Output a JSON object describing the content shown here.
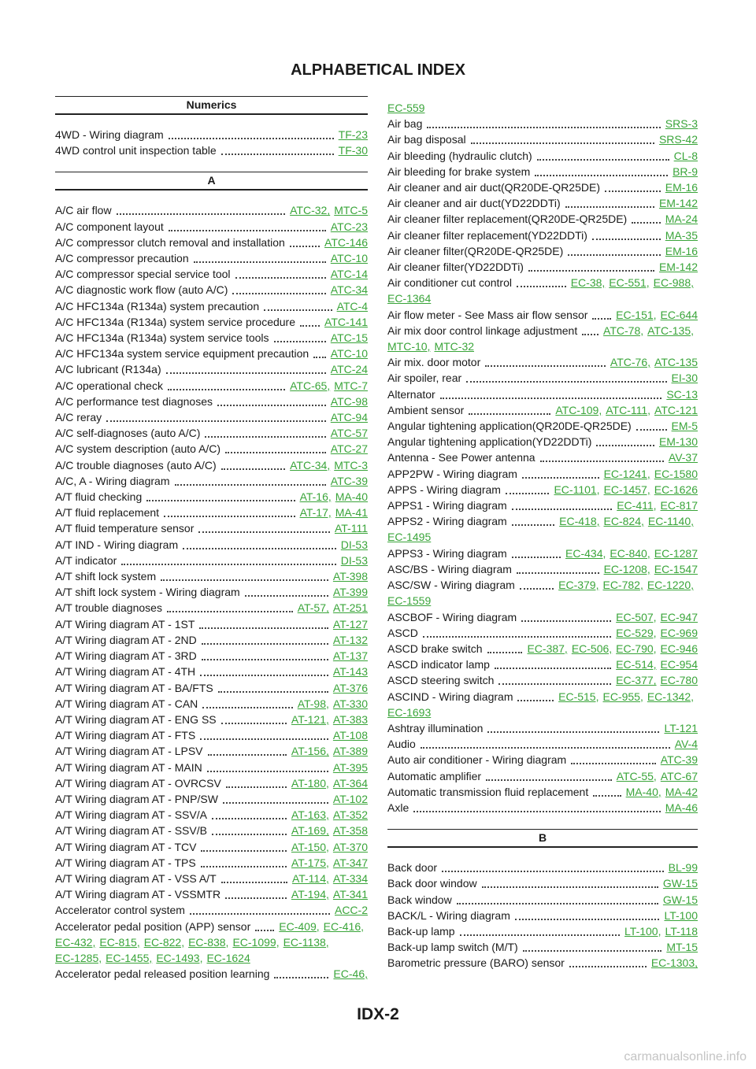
{
  "header": {
    "title": "ALPHABETICAL INDEX"
  },
  "columns": [
    {
      "sections": [
        {
          "heading": "Numerics",
          "entries": [
            {
              "text": "4WD - Wiring diagram",
              "links": [
                "TF-23"
              ]
            },
            {
              "text": "4WD control unit inspection table",
              "links": [
                "TF-30"
              ]
            }
          ]
        },
        {
          "heading": "A",
          "entries": [
            {
              "text": "A/C air flow",
              "links": [
                "ATC-32,",
                "MTC-5"
              ]
            },
            {
              "text": "A/C component layout",
              "links": [
                "ATC-23"
              ]
            },
            {
              "text": "A/C compressor clutch removal and installation",
              "links": [
                "ATC-146"
              ]
            },
            {
              "text": "A/C compressor precaution",
              "links": [
                "ATC-10"
              ]
            },
            {
              "text": "A/C compressor special service tool",
              "links": [
                "ATC-14"
              ]
            },
            {
              "text": "A/C diagnostic work flow (auto A/C)",
              "links": [
                "ATC-34"
              ]
            },
            {
              "text": "A/C HFC134a (R134a) system precaution",
              "links": [
                "ATC-4"
              ]
            },
            {
              "text": "A/C HFC134a (R134a) system service procedure",
              "links": [
                "ATC-141"
              ]
            },
            {
              "text": "A/C HFC134a (R134a) system service tools",
              "links": [
                "ATC-15"
              ]
            },
            {
              "text": "A/C HFC134a system service equipment precaution",
              "links": [
                "ATC-10"
              ]
            },
            {
              "text": "A/C lubricant (R134a)",
              "links": [
                "ATC-24"
              ]
            },
            {
              "text": "A/C operational check",
              "links": [
                "ATC-65,",
                "MTC-7"
              ]
            },
            {
              "text": "A/C performance test diagnoses",
              "links": [
                "ATC-98"
              ]
            },
            {
              "text": "A/C reray",
              "links": [
                "ATC-94"
              ]
            },
            {
              "text": "A/C self-diagnoses (auto A/C)",
              "links": [
                "ATC-57"
              ]
            },
            {
              "text": "A/C system description (auto A/C)",
              "links": [
                "ATC-27"
              ]
            },
            {
              "text": "A/C trouble diagnoses (auto A/C)",
              "links": [
                "ATC-34,",
                "MTC-3"
              ]
            },
            {
              "text": "A/C, A - Wiring diagram",
              "links": [
                "ATC-39"
              ]
            },
            {
              "text": "A/T fluid checking",
              "links": [
                "AT-16,",
                "MA-40"
              ]
            },
            {
              "text": "A/T fluid replacement",
              "links": [
                "AT-17,",
                "MA-41"
              ]
            },
            {
              "text": "A/T fluid temperature sensor",
              "links": [
                "AT-111"
              ]
            },
            {
              "text": "A/T IND - Wiring diagram",
              "links": [
                "DI-53"
              ]
            },
            {
              "text": "A/T indicator",
              "links": [
                "DI-53"
              ]
            },
            {
              "text": "A/T shift lock system",
              "links": [
                "AT-398"
              ]
            },
            {
              "text": "A/T shift lock system - Wiring diagram",
              "links": [
                "AT-399"
              ]
            },
            {
              "text": "A/T trouble diagnoses",
              "links": [
                "AT-57,",
                "AT-251"
              ]
            },
            {
              "text": "A/T Wiring diagram AT - 1ST",
              "links": [
                "AT-127"
              ]
            },
            {
              "text": "A/T Wiring diagram AT - 2ND",
              "links": [
                "AT-132"
              ]
            },
            {
              "text": "A/T Wiring diagram AT - 3RD",
              "links": [
                "AT-137"
              ]
            },
            {
              "text": "A/T Wiring diagram AT - 4TH",
              "links": [
                "AT-143"
              ]
            },
            {
              "text": "A/T Wiring diagram AT - BA/FTS",
              "links": [
                "AT-376"
              ]
            },
            {
              "text": "A/T Wiring diagram AT - CAN",
              "links": [
                "AT-98,",
                "AT-330"
              ]
            },
            {
              "text": "A/T Wiring diagram AT - ENG SS",
              "links": [
                "AT-121,",
                "AT-383"
              ]
            },
            {
              "text": "A/T Wiring diagram AT - FTS",
              "links": [
                "AT-108"
              ]
            },
            {
              "text": "A/T Wiring diagram AT - LPSV",
              "links": [
                "AT-156,",
                "AT-389"
              ]
            },
            {
              "text": "A/T Wiring diagram AT - MAIN",
              "links": [
                "AT-395"
              ]
            },
            {
              "text": "A/T Wiring diagram AT - OVRCSV",
              "links": [
                "AT-180,",
                "AT-364"
              ]
            },
            {
              "text": "A/T Wiring diagram AT - PNP/SW",
              "links": [
                "AT-102"
              ]
            },
            {
              "text": "A/T Wiring diagram AT - SSV/A",
              "links": [
                "AT-163,",
                "AT-352"
              ]
            },
            {
              "text": "A/T Wiring diagram AT - SSV/B",
              "links": [
                "AT-169,",
                "AT-358"
              ]
            },
            {
              "text": "A/T Wiring diagram AT - TCV",
              "links": [
                "AT-150,",
                "AT-370"
              ]
            },
            {
              "text": "A/T Wiring diagram AT - TPS",
              "links": [
                "AT-175,",
                "AT-347"
              ]
            },
            {
              "text": "A/T Wiring diagram AT - VSS A/T",
              "links": [
                "AT-114,",
                "AT-334"
              ]
            },
            {
              "text": "A/T Wiring diagram AT - VSSMTR",
              "links": [
                "AT-194,",
                "AT-341"
              ]
            },
            {
              "text": "Accelerator control system",
              "links": [
                "ACC-2"
              ]
            },
            {
              "text": "Accelerator pedal position (APP) sensor",
              "links": [
                "EC-409,",
                "EC-416,",
                "EC-432,",
                "EC-815,",
                "EC-822,",
                "EC-838,",
                "EC-1099,",
                "EC-1138,",
                "EC-1285,",
                "EC-1455,",
                "EC-1493,",
                "EC-1624"
              ]
            },
            {
              "text": "Accelerator pedal released position learning",
              "links": [
                "EC-46,"
              ]
            }
          ]
        }
      ]
    },
    {
      "sections": [
        {
          "entries": [
            {
              "links": [
                "EC-559"
              ]
            },
            {
              "text": "Air bag",
              "links": [
                "SRS-3"
              ]
            },
            {
              "text": "Air bag disposal",
              "links": [
                "SRS-42"
              ]
            },
            {
              "text": "Air bleeding (hydraulic clutch)",
              "links": [
                "CL-8"
              ]
            },
            {
              "text": "Air bleeding for brake system",
              "links": [
                "BR-9"
              ]
            },
            {
              "text": "Air cleaner and air duct(QR20DE-QR25DE)",
              "links": [
                "EM-16"
              ]
            },
            {
              "text": "Air cleaner and air duct(YD22DDTi)",
              "links": [
                "EM-142"
              ]
            },
            {
              "text": "Air cleaner filter replacement(QR20DE-QR25DE)",
              "links": [
                "MA-24"
              ]
            },
            {
              "text": "Air cleaner filter replacement(YD22DDTi)",
              "links": [
                "MA-35"
              ]
            },
            {
              "text": "Air cleaner filter(QR20DE-QR25DE)",
              "links": [
                "EM-16"
              ]
            },
            {
              "text": "Air cleaner filter(YD22DDTi)",
              "links": [
                "EM-142"
              ]
            },
            {
              "text": "Air conditioner cut control",
              "links": [
                "EC-38,",
                "EC-551,",
                "EC-988,",
                "EC-1364"
              ]
            },
            {
              "text": "Air flow meter - See Mass air flow sensor",
              "links": [
                "EC-151,",
                "EC-644"
              ]
            },
            {
              "text": "Air mix door control linkage adjustment",
              "links": [
                "ATC-78,",
                "ATC-135,",
                "MTC-10,",
                "MTC-32"
              ]
            },
            {
              "text": "Air mix. door motor",
              "links": [
                "ATC-76,",
                "ATC-135"
              ]
            },
            {
              "text": "Air spoiler, rear",
              "links": [
                "EI-30"
              ]
            },
            {
              "text": "Alternator",
              "links": [
                "SC-13"
              ]
            },
            {
              "text": "Ambient sensor",
              "links": [
                "ATC-109,",
                "ATC-111,",
                "ATC-121"
              ]
            },
            {
              "text": "Angular tightening application(QR20DE-QR25DE)",
              "links": [
                "EM-5"
              ]
            },
            {
              "text": "Angular tightening application(YD22DDTi)",
              "links": [
                "EM-130"
              ]
            },
            {
              "text": "Antenna - See Power antenna",
              "links": [
                "AV-37"
              ]
            },
            {
              "text": "APP2PW - Wiring diagram",
              "links": [
                "EC-1241,",
                "EC-1580"
              ]
            },
            {
              "text": "APPS - Wiring diagram",
              "links": [
                "EC-1101,",
                "EC-1457,",
                "EC-1626"
              ]
            },
            {
              "text": "APPS1 - Wiring diagram",
              "links": [
                "EC-411,",
                "EC-817"
              ]
            },
            {
              "text": "APPS2 - Wiring diagram",
              "links": [
                "EC-418,",
                "EC-824,",
                "EC-1140,",
                "EC-1495"
              ]
            },
            {
              "text": "APPS3 - Wiring diagram",
              "links": [
                "EC-434,",
                "EC-840,",
                "EC-1287"
              ]
            },
            {
              "text": "ASC/BS - Wiring diagram",
              "links": [
                "EC-1208,",
                "EC-1547"
              ]
            },
            {
              "text": "ASC/SW - Wiring diagram",
              "links": [
                "EC-379,",
                "EC-782,",
                "EC-1220,",
                "EC-1559"
              ]
            },
            {
              "text": "ASCBOF - Wiring diagram",
              "links": [
                "EC-507,",
                "EC-947"
              ]
            },
            {
              "text": "ASCD",
              "links": [
                "EC-529,",
                "EC-969"
              ]
            },
            {
              "text": "ASCD brake switch",
              "links": [
                "EC-387,",
                "EC-506,",
                "EC-790,",
                "EC-946"
              ]
            },
            {
              "text": "ASCD indicator lamp",
              "links": [
                "EC-514,",
                "EC-954"
              ]
            },
            {
              "text": "ASCD steering switch",
              "links": [
                "EC-377,",
                "EC-780"
              ]
            },
            {
              "text": "ASCIND - Wiring diagram",
              "links": [
                "EC-515,",
                "EC-955,",
                "EC-1342,",
                "EC-1693"
              ]
            },
            {
              "text": "Ashtray illumination",
              "links": [
                "LT-121"
              ]
            },
            {
              "text": "Audio",
              "links": [
                "AV-4"
              ]
            },
            {
              "text": "Auto air conditioner - Wiring diagram",
              "links": [
                "ATC-39"
              ]
            },
            {
              "text": "Automatic amplifier",
              "links": [
                "ATC-55,",
                "ATC-67"
              ]
            },
            {
              "text": "Automatic transmission fluid replacement",
              "links": [
                "MA-40,",
                "MA-42"
              ]
            },
            {
              "text": "Axle",
              "links": [
                "MA-46"
              ]
            }
          ]
        },
        {
          "heading": "B",
          "entries": [
            {
              "text": "Back door",
              "links": [
                "BL-99"
              ]
            },
            {
              "text": "Back door window",
              "links": [
                "GW-15"
              ]
            },
            {
              "text": "Back window",
              "links": [
                "GW-15"
              ]
            },
            {
              "text": "BACK/L - Wiring diagram",
              "links": [
                "LT-100"
              ]
            },
            {
              "text": "Back-up lamp",
              "links": [
                "LT-100,",
                "LT-118"
              ]
            },
            {
              "text": "Back-up lamp switch (M/T)",
              "links": [
                "MT-15"
              ]
            },
            {
              "text": "Barometric pressure (BARO) sensor",
              "links": [
                "EC-1303,"
              ]
            }
          ]
        }
      ]
    }
  ],
  "footer": {
    "page": "IDX-2"
  },
  "watermark": "carmanualsonline.info"
}
